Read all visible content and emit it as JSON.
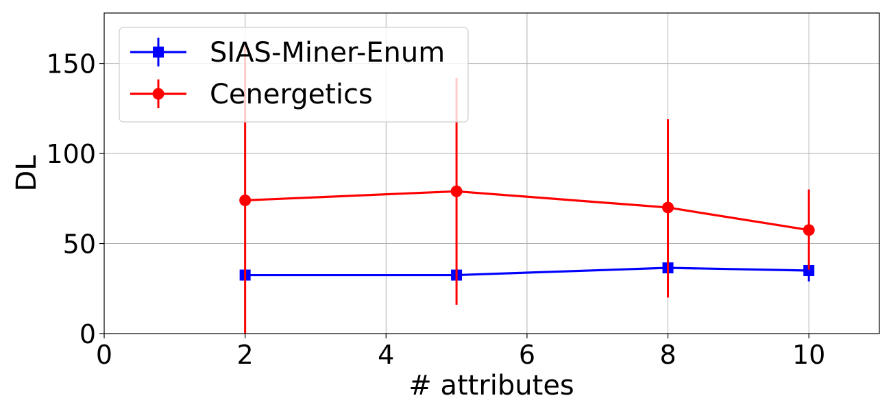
{
  "chart_data": {
    "type": "line",
    "xlabel": "# attributes",
    "ylabel": "DL",
    "xlim": [
      0,
      11
    ],
    "ylim": [
      0,
      178
    ],
    "xticks": [
      0,
      2,
      4,
      6,
      8,
      10
    ],
    "yticks": [
      0,
      50,
      100,
      150
    ],
    "grid": true,
    "legend_position": "top-left",
    "series": [
      {
        "name": "SIAS-Miner-Enum",
        "color": "#0000ff",
        "marker": "square",
        "x": [
          2,
          5,
          8,
          10
        ],
        "y": [
          32.5,
          32.5,
          36.5,
          35
        ],
        "yerr_low": [
          2,
          1,
          2,
          6
        ],
        "yerr_high": [
          2,
          1,
          2,
          2
        ]
      },
      {
        "name": "Cenergetics",
        "color": "#ff0000",
        "marker": "circle",
        "x": [
          2,
          5,
          8,
          10
        ],
        "y": [
          74,
          79,
          70,
          57.5
        ],
        "yerr_low": [
          74,
          63,
          50,
          22
        ],
        "yerr_high": [
          86,
          63,
          49,
          22.5
        ]
      }
    ]
  }
}
